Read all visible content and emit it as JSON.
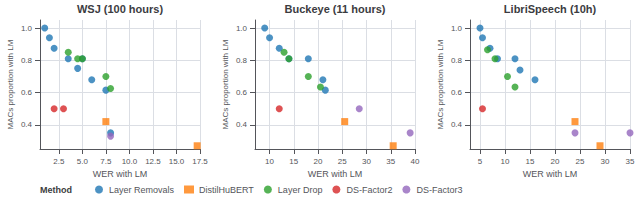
{
  "chart_data": [
    {
      "type": "scatter",
      "title": "WSJ (100 hours)",
      "xlabel": "WER with LM",
      "ylabel": "MACs proportion with LM",
      "xlim": [
        0.5,
        17.5
      ],
      "ylim": [
        0.25,
        1.05
      ],
      "xticks": [
        2.5,
        {
          "value": 5,
          "label": "5.0"
        },
        7.5,
        {
          "value": 10,
          "label": "10.0"
        },
        12.5,
        {
          "value": 15,
          "label": "15.0"
        },
        17.5
      ],
      "yticks": [
        0.4,
        0.6,
        0.8,
        {
          "value": 1,
          "label": "1.0"
        }
      ],
      "grid": true,
      "legend": "bottom",
      "legend_title": "Method",
      "series": [
        {
          "name": "Layer Removals",
          "color": "#1f77b4",
          "marker": "circle",
          "x": [
            1.0,
            1.5,
            2.0,
            3.5,
            4.5,
            5.0,
            6.0,
            7.5,
            8.0
          ],
          "values": [
            1.0,
            0.94,
            0.875,
            0.81,
            0.75,
            0.81,
            0.68,
            0.615,
            0.35
          ]
        },
        {
          "name": "DistilHuBERT",
          "color": "#ff7f0e",
          "marker": "square",
          "x": [
            7.5,
            17.2
          ],
          "values": [
            0.42,
            0.27
          ]
        },
        {
          "name": "Layer Drop",
          "color": "#2ca02c",
          "marker": "circle",
          "x": [
            3.5,
            4.5,
            5.0,
            7.5,
            8.0
          ],
          "values": [
            0.85,
            0.81,
            0.81,
            0.7,
            0.625
          ]
        },
        {
          "name": "DS-Factor2",
          "color": "#d62728",
          "marker": "circle",
          "x": [
            2.0,
            3.0
          ],
          "values": [
            0.5,
            0.5
          ]
        },
        {
          "name": "DS-Factor3",
          "color": "#9467bd",
          "marker": "circle",
          "x": [
            8.0
          ],
          "values": [
            0.33
          ]
        }
      ]
    },
    {
      "type": "scatter",
      "title": "Buckeye (11 hours)",
      "xlabel": "WER with LM",
      "ylabel": "MACs proportion with LM",
      "xlim": [
        7,
        40
      ],
      "ylim": [
        0.25,
        1.05
      ],
      "xticks": [
        10,
        15,
        20,
        25,
        30,
        35,
        40
      ],
      "yticks": [
        0.4,
        0.6,
        0.8,
        {
          "value": 1,
          "label": "1.0"
        }
      ],
      "grid": true,
      "legend": "bottom",
      "legend_title": "Method",
      "series": [
        {
          "name": "Layer Removals",
          "color": "#1f77b4",
          "marker": "circle",
          "x": [
            9.0,
            10.0,
            12.0,
            14.0,
            18.0,
            21.0,
            21.5
          ],
          "values": [
            1.0,
            0.94,
            0.875,
            0.81,
            0.81,
            0.68,
            0.615
          ]
        },
        {
          "name": "DistilHuBERT",
          "color": "#ff7f0e",
          "marker": "square",
          "x": [
            25.5,
            35.5
          ],
          "values": [
            0.42,
            0.27
          ]
        },
        {
          "name": "Layer Drop",
          "color": "#2ca02c",
          "marker": "circle",
          "x": [
            13.0,
            14.0,
            18.0,
            20.5
          ],
          "values": [
            0.85,
            0.81,
            0.7,
            0.635
          ]
        },
        {
          "name": "DS-Factor2",
          "color": "#d62728",
          "marker": "circle",
          "x": [
            12.0
          ],
          "values": [
            0.5
          ]
        },
        {
          "name": "DS-Factor3",
          "color": "#9467bd",
          "marker": "circle",
          "x": [
            28.5,
            39.0
          ],
          "values": [
            0.5,
            0.35
          ]
        }
      ]
    },
    {
      "type": "scatter",
      "title": "LibriSpeech (10h)",
      "xlabel": "WER with LM",
      "ylabel": "MACs proportion with LM",
      "xlim": [
        3,
        35
      ],
      "ylim": [
        0.25,
        1.05
      ],
      "xticks": [
        5,
        10,
        15,
        20,
        25,
        30,
        35
      ],
      "yticks": [
        0.4,
        0.6,
        0.8,
        {
          "value": 1,
          "label": "1.0"
        }
      ],
      "grid": true,
      "legend": "bottom",
      "legend_title": "Method",
      "series": [
        {
          "name": "Layer Removals",
          "color": "#1f77b4",
          "marker": "circle",
          "x": [
            5.0,
            5.5,
            7.0,
            8.5,
            12.0,
            13.0,
            16.0
          ],
          "values": [
            1.0,
            0.94,
            0.875,
            0.81,
            0.81,
            0.74,
            0.68
          ]
        },
        {
          "name": "DistilHuBERT",
          "color": "#ff7f0e",
          "marker": "square",
          "x": [
            24.0,
            29.0
          ],
          "values": [
            0.42,
            0.27
          ]
        },
        {
          "name": "Layer Drop",
          "color": "#2ca02c",
          "marker": "circle",
          "x": [
            6.5,
            8.0,
            10.5,
            12.0
          ],
          "values": [
            0.865,
            0.81,
            0.7,
            0.635
          ]
        },
        {
          "name": "DS-Factor2",
          "color": "#d62728",
          "marker": "circle",
          "x": [
            5.5
          ],
          "values": [
            0.5
          ]
        },
        {
          "name": "DS-Factor3",
          "color": "#9467bd",
          "marker": "circle",
          "x": [
            24.0,
            35.0
          ],
          "values": [
            0.35,
            0.35
          ]
        }
      ]
    }
  ]
}
